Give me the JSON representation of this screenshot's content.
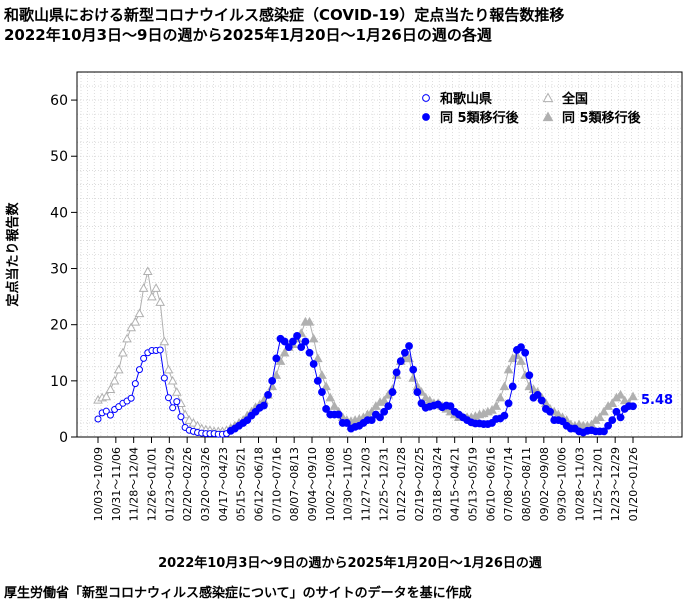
{
  "header": {
    "title_line1": "和歌山県における新型コロナウイルス感染症（COVID-19）定点当たり報告数推移",
    "title_line2": "2022年10月3日～9日の週から2025年1月20日～1月26日の週の各週"
  },
  "footer": {
    "source": "厚生労働省「新型コロナウィルス感染症について」のサイトのデータを基に作成"
  },
  "colors": {
    "prefecture": "#0000ff",
    "national": "#b0b0b0",
    "grid": "#c8c8c8"
  },
  "chart_data": {
    "type": "line",
    "xlabel": "2022年10月3日～9日の週から2025年1月20日～1月26日の週",
    "ylabel": "定点当たり報告数",
    "ylim": [
      0,
      65
    ],
    "yticks": [
      0,
      10,
      20,
      30,
      40,
      50,
      60
    ],
    "grid": true,
    "legend_position": "top-right",
    "legend": [
      {
        "label": "和歌山県",
        "marker": "open-circle",
        "color": "#0000ff"
      },
      {
        "label": "全国",
        "marker": "open-triangle",
        "color": "#b0b0b0"
      },
      {
        "label": "同 5類移行後",
        "marker": "filled-circle",
        "color": "#0000ff"
      },
      {
        "label": "同 5類移行後",
        "marker": "filled-triangle",
        "color": "#b0b0b0"
      }
    ],
    "xtick_labels": [
      "10/03～10/09",
      "10/31～11/06",
      "11/28～12/04",
      "12/26～01/01",
      "01/23～01/29",
      "02/20～02/26",
      "03/20～03/26",
      "04/17～04/23",
      "05/15～05/21",
      "06/12～06/18",
      "07/10～07/16",
      "08/07～08/13",
      "09/04～09/10",
      "10/02～10/08",
      "10/30～11/05",
      "11/27～12/03",
      "12/25～12/31",
      "01/22～01/28",
      "02/19～02/25",
      "03/18～03/24",
      "04/15～04/21",
      "05/13～05/19",
      "06/10～06/16",
      "07/08～07/14",
      "08/05～08/11",
      "09/02～09/08",
      "09/30～10/06",
      "10/28～11/03",
      "11/25～12/01",
      "12/23～12/29",
      "01/20～01/26"
    ],
    "transition_index": 32,
    "last_value_label": "5.48",
    "series": [
      {
        "name": "和歌山県",
        "values": [
          3.2,
          4.3,
          4.6,
          3.9,
          4.9,
          5.4,
          6.0,
          6.4,
          6.9,
          9.5,
          12.0,
          14.0,
          15.0,
          15.4,
          15.4,
          15.5,
          10.5,
          7.0,
          5.2,
          6.3,
          3.6,
          1.7,
          1.2,
          1.0,
          0.8,
          0.7,
          0.6,
          0.6,
          0.6,
          0.5,
          0.5,
          0.6,
          1.1,
          1.5,
          2.0,
          2.5,
          3.0,
          3.8,
          4.5,
          5.2,
          5.6,
          7.5,
          10.0,
          14.0,
          17.5,
          17.0,
          16.0,
          17.0,
          18.0,
          16.0,
          17.0,
          15.0,
          13.0,
          10.0,
          8.0,
          5.0,
          4.0,
          4.0,
          4.0,
          2.5,
          2.5,
          1.5,
          1.8,
          2.0,
          2.5,
          3.0,
          3.0,
          4.0,
          3.5,
          4.5,
          5.5,
          8.0,
          11.5,
          13.5,
          15.0,
          16.2,
          12.0,
          8.0,
          6.0,
          5.2,
          5.4,
          5.6,
          5.8,
          5.3,
          5.6,
          5.5,
          4.5,
          4.0,
          3.5,
          3.0,
          2.6,
          2.4,
          2.4,
          2.3,
          2.3,
          2.5,
          3.2,
          3.3,
          3.8,
          6.0,
          9.0,
          15.5,
          16.0,
          15.0,
          11.0,
          7.0,
          7.5,
          6.5,
          5.0,
          4.5,
          3.0,
          3.0,
          2.8,
          2.0,
          1.5,
          1.5,
          1.0,
          0.8,
          1.1,
          1.2,
          1.0,
          1.0,
          1.0,
          2.0,
          3.0,
          4.5,
          3.5,
          5.0,
          5.5,
          5.48
        ]
      },
      {
        "name": "全国",
        "values": [
          6.6,
          7.0,
          7.2,
          8.5,
          10.0,
          12.0,
          15.0,
          17.5,
          19.5,
          20.5,
          22.0,
          26.5,
          29.5,
          25.0,
          26.5,
          24.0,
          17.0,
          12.0,
          10.0,
          8.0,
          6.0,
          4.0,
          3.0,
          2.5,
          2.0,
          1.5,
          1.3,
          1.2,
          1.0,
          1.0,
          1.0,
          1.2,
          1.6,
          2.0,
          2.5,
          3.0,
          3.8,
          4.5,
          5.3,
          5.8,
          6.5,
          7.5,
          9.0,
          11.0,
          13.5,
          15.0,
          16.0,
          16.5,
          17.5,
          18.5,
          20.5,
          20.5,
          17.5,
          14.0,
          11.0,
          9.0,
          7.0,
          5.5,
          4.5,
          3.5,
          3.0,
          2.8,
          3.0,
          3.2,
          3.5,
          4.0,
          4.5,
          5.5,
          6.2,
          6.5,
          7.5,
          8.5,
          11.0,
          13.5,
          14.0,
          14.0,
          10.5,
          9.0,
          8.0,
          7.0,
          6.5,
          6.0,
          6.0,
          5.5,
          5.0,
          4.5,
          4.0,
          3.5,
          3.5,
          3.5,
          3.5,
          3.7,
          4.0,
          4.2,
          4.5,
          4.8,
          5.5,
          7.0,
          9.0,
          12.0,
          14.0,
          14.5,
          13.5,
          11.0,
          9.0,
          8.5,
          8.0,
          7.0,
          6.0,
          5.0,
          4.5,
          4.0,
          3.5,
          3.0,
          2.2,
          2.0,
          2.2,
          2.0,
          2.0,
          2.2,
          3.0,
          3.5,
          4.5,
          5.5,
          6.0,
          7.0,
          7.5,
          6.5,
          6.0,
          7.2
        ]
      }
    ]
  }
}
